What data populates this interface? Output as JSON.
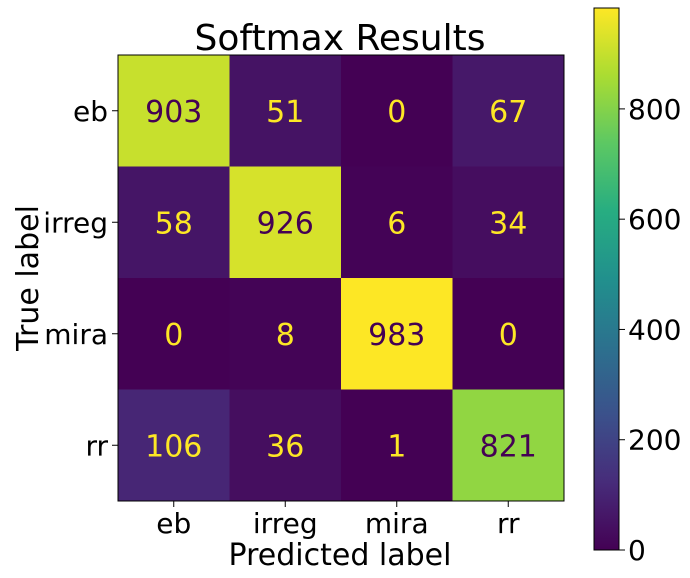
{
  "chart_data": {
    "type": "heatmap",
    "title": "Softmax Results",
    "xlabel": "Predicted label",
    "ylabel": "True label",
    "x_categories": [
      "eb",
      "irreg",
      "mira",
      "rr"
    ],
    "y_categories": [
      "eb",
      "irreg",
      "mira",
      "rr"
    ],
    "values": [
      [
        903,
        51,
        0,
        67
      ],
      [
        58,
        926,
        6,
        34
      ],
      [
        0,
        8,
        983,
        0
      ],
      [
        106,
        36,
        1,
        821
      ]
    ],
    "colorbar": {
      "range": [
        0,
        983
      ],
      "ticks": [
        0,
        200,
        400,
        600,
        800
      ],
      "colormap": "viridis"
    },
    "text_colors": {
      "light_cell": "#440154",
      "dark_cell": "#fde725"
    }
  }
}
